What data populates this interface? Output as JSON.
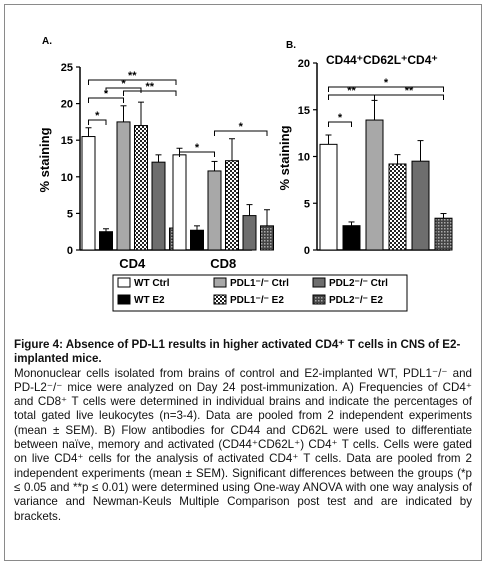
{
  "figure": {
    "panelA_letter": "A.",
    "panelB_letter": "B.",
    "panelB_title": "CD44⁺CD62L⁺CD4⁺",
    "ylabel": "% staining"
  },
  "legend": [
    {
      "label": "WT Ctrl",
      "fill": "white"
    },
    {
      "label": "PDL1⁻/⁻ Ctrl",
      "fill": "gray"
    },
    {
      "label": "PDL2⁻/⁻ Ctrl",
      "fill": "darkgray"
    },
    {
      "label": "WT E2",
      "fill": "black"
    },
    {
      "label": "PDL1⁻/⁻ E2",
      "fill": "checker"
    },
    {
      "label": "PDL2⁻/⁻ E2",
      "fill": "dots"
    }
  ],
  "chart_data": [
    {
      "type": "bar",
      "panel": "A.",
      "ylabel": "% staining",
      "ylim": [
        0,
        25
      ],
      "yticks": [
        "0",
        "5",
        "10",
        "15",
        "20",
        "25"
      ],
      "categories": [
        "CD4",
        "CD8"
      ],
      "series": [
        {
          "name": "WT Ctrl",
          "values": [
            15.5,
            13.0
          ],
          "err": [
            1.2,
            0.9
          ]
        },
        {
          "name": "WT E2",
          "values": [
            2.5,
            2.7
          ],
          "err": [
            0.4,
            0.6
          ]
        },
        {
          "name": "PDL1⁻/⁻ Ctrl",
          "values": [
            17.5,
            10.8
          ],
          "err": [
            2.2,
            1.3
          ]
        },
        {
          "name": "PDL1⁻/⁻ E2",
          "values": [
            17.0,
            12.2
          ],
          "err": [
            3.2,
            3.0
          ]
        },
        {
          "name": "PDL2⁻/⁻ Ctrl",
          "values": [
            12.0,
            4.7
          ],
          "err": [
            1.0,
            1.5
          ]
        },
        {
          "name": "PDL2⁻/⁻ E2",
          "values": [
            3.0,
            3.3
          ],
          "err": [
            0.5,
            2.2
          ]
        }
      ],
      "brackets": [
        {
          "from": 0,
          "to": 1,
          "label": "*",
          "group": 0
        },
        {
          "from": 0,
          "to": 2,
          "label": "*",
          "group": 0
        },
        {
          "from": 1,
          "to": 3,
          "label": "*",
          "group": 0
        },
        {
          "from": 2,
          "to": 5,
          "label": "**",
          "group": 0
        },
        {
          "from": 0,
          "to": 5,
          "label": "**",
          "group": 0
        },
        {
          "from": 0,
          "to": 2,
          "label": "*",
          "group": 1
        },
        {
          "from": 2,
          "to": 5,
          "label": "*",
          "group": 1
        }
      ]
    },
    {
      "type": "bar",
      "panel": "B.",
      "title": "CD44⁺CD62L⁺CD4⁺",
      "ylabel": "% staining",
      "ylim": [
        0,
        20
      ],
      "yticks": [
        "0",
        "5",
        "10",
        "15",
        "20"
      ],
      "series": [
        {
          "name": "WT Ctrl",
          "value": 11.3,
          "err": 1.0
        },
        {
          "name": "WT E2",
          "value": 2.6,
          "err": 0.4
        },
        {
          "name": "PDL1⁻/⁻ Ctrl",
          "value": 13.9,
          "err": 2.1
        },
        {
          "name": "PDL1⁻/⁻ E2",
          "value": 9.2,
          "err": 1.0
        },
        {
          "name": "PDL2⁻/⁻ Ctrl",
          "value": 9.5,
          "err": 2.2
        },
        {
          "name": "PDL2⁻/⁻ E2",
          "value": 3.4,
          "err": 0.5
        }
      ],
      "brackets": [
        {
          "from": 0,
          "to": 1,
          "label": "*"
        },
        {
          "from": 0,
          "to": 2,
          "label": "**"
        },
        {
          "from": 2,
          "to": 5,
          "label": "**"
        },
        {
          "from": 0,
          "to": 5,
          "label": "*"
        }
      ]
    }
  ],
  "caption": {
    "title": "Figure 4: Absence of PD-L1 results in higher activated CD4⁺ T cells in CNS of E2-implanted mice.",
    "body": "Mononuclear cells isolated from brains of control and E2-implanted WT, PDL1⁻/⁻ and PD-L2⁻/⁻ mice were analyzed on Day 24 post-immunization. A) Frequencies of CD4⁺ and CD8⁺ T cells were determined in individual brains and indicate the percentages of total gated live leukocytes (n=3-4). Data are pooled from 2 independent experiments (mean ± SEM). B) Flow antibodies for CD44 and CD62L were used to differentiate between naïve, memory and activated (CD44⁺CD62L⁺) CD4⁺ T cells. Cells were gated on live CD4⁺ cells for the analysis of activated CD4⁺ T cells. Data are pooled from 2 independent experiments (mean ± SEM). Significant differences between the groups (*p ≤ 0.05 and **p ≤ 0.01) were determined using One-way ANOVA with one way analysis of variance and Newman-Keuls Multiple Comparison post test and are indicated by brackets."
  }
}
